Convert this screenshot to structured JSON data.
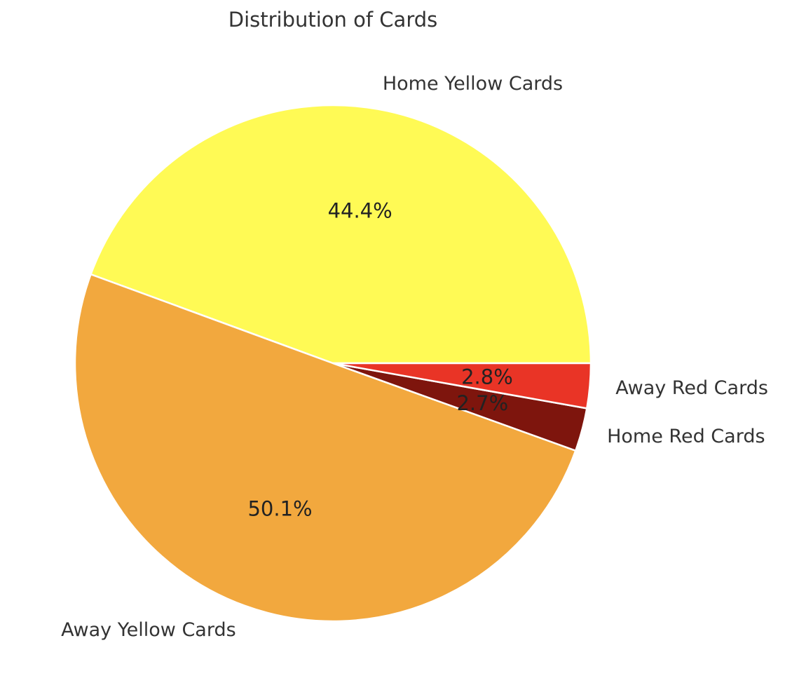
{
  "chart_data": {
    "type": "pie",
    "title": "Distribution of Cards",
    "start_angle_deg": 0,
    "direction": "counterclockwise",
    "slices": [
      {
        "label": "Home Yellow Cards",
        "value": 44.4,
        "pct_label": "44.4%",
        "color": "#fffa55"
      },
      {
        "label": "Away Yellow Cards",
        "value": 50.1,
        "pct_label": "50.1%",
        "color": "#f2a83e"
      },
      {
        "label": "Home Red Cards",
        "value": 2.7,
        "pct_label": "2.7%",
        "color": "#7e150d"
      },
      {
        "label": "Away Red Cards",
        "value": 2.8,
        "pct_label": "2.8%",
        "color": "#e93426"
      }
    ]
  }
}
